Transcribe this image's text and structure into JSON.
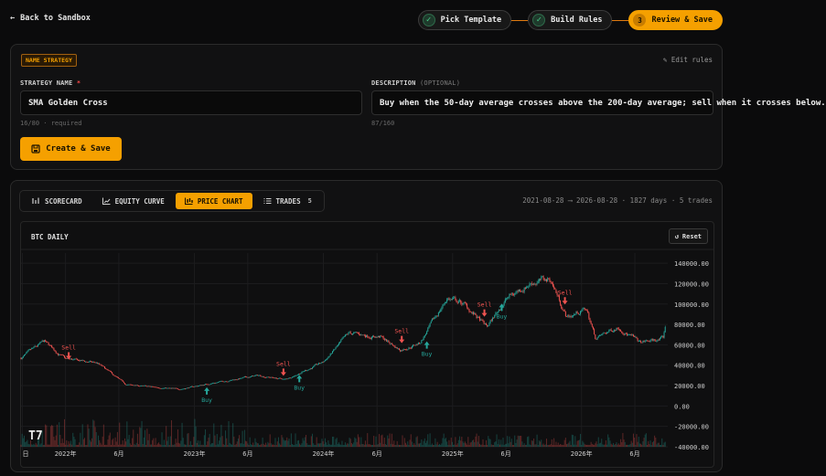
{
  "nav": {
    "back_label": "Back to Sandbox"
  },
  "steps": [
    {
      "label": "Pick Template",
      "state": "done"
    },
    {
      "label": "Build Rules",
      "state": "done"
    },
    {
      "number": "3",
      "label": "Review & Save",
      "state": "active"
    }
  ],
  "name_panel": {
    "tag": "NAME STRATEGY",
    "edit_rules": "Edit rules",
    "name_label": "STRATEGY NAME",
    "required_mark": "*",
    "name_value": "SMA Golden Cross",
    "name_hint": "16/80 · required",
    "desc_label": "DESCRIPTION",
    "desc_optional": "(OPTIONAL)",
    "desc_value": "Buy when the 50-day average crosses above the 200-day average; sell when it crosses below.",
    "desc_hint": "87/160",
    "create_button": "Create & Save"
  },
  "tabs": [
    {
      "label": "SCORECARD",
      "icon": "scorecard-icon"
    },
    {
      "label": "EQUITY CURVE",
      "icon": "equity-curve-icon"
    },
    {
      "label": "PRICE CHART",
      "icon": "price-chart-icon",
      "active": true
    },
    {
      "label": "TRADES",
      "icon": "trades-icon",
      "count": "5"
    }
  ],
  "range_info": "2021-08-28 ⟶ 2026-08-28 · 1827 days · 5 trades",
  "chart": {
    "title": "BTC DAILY",
    "reset_label": "Reset",
    "logo": "TV",
    "colors": {
      "up": "#26a69a",
      "down": "#ef5350",
      "buy": "#26a69a",
      "sell": "#ef5350",
      "grid": "#1c1c1e"
    }
  },
  "chart_data": {
    "type": "candlestick",
    "title": "BTC DAILY",
    "y_ticks": [
      "140000.00",
      "120000.00",
      "100000.00",
      "80000.00",
      "60000.00",
      "40000.00",
      "20000.00",
      "0.00",
      "-20000.00",
      "-40000.00"
    ],
    "ylim": [
      -40000,
      150000
    ],
    "x_ticks": [
      "日",
      "2022年",
      "6月",
      "2023年",
      "6月",
      "2024年",
      "6月",
      "2025年",
      "6月",
      "2026年",
      "6月"
    ],
    "x_tick_dates": [
      "2021-09-01",
      "2022-01-01",
      "2022-06-01",
      "2023-01-01",
      "2023-06-01",
      "2024-01-01",
      "2024-06-01",
      "2025-01-01",
      "2025-06-01",
      "2026-01-01",
      "2026-06-01"
    ],
    "xlim": [
      "2021-08-28",
      "2026-08-28"
    ],
    "price_anchors": [
      {
        "date": "2021-08-28",
        "price": 47000
      },
      {
        "date": "2021-11-01",
        "price": 63000
      },
      {
        "date": "2022-01-01",
        "price": 46000
      },
      {
        "date": "2022-04-01",
        "price": 42000
      },
      {
        "date": "2022-06-20",
        "price": 21000
      },
      {
        "date": "2022-11-20",
        "price": 16500
      },
      {
        "date": "2023-03-01",
        "price": 23000
      },
      {
        "date": "2023-07-01",
        "price": 30000
      },
      {
        "date": "2023-09-15",
        "price": 26000
      },
      {
        "date": "2024-01-01",
        "price": 43000
      },
      {
        "date": "2024-03-14",
        "price": 71000
      },
      {
        "date": "2024-06-10",
        "price": 68000
      },
      {
        "date": "2024-08-05",
        "price": 55000
      },
      {
        "date": "2024-10-01",
        "price": 62000
      },
      {
        "date": "2024-12-17",
        "price": 106000
      },
      {
        "date": "2025-02-01",
        "price": 100000
      },
      {
        "date": "2025-04-08",
        "price": 77000
      },
      {
        "date": "2025-06-01",
        "price": 105000
      },
      {
        "date": "2025-08-14",
        "price": 122000
      },
      {
        "date": "2025-10-06",
        "price": 124000
      },
      {
        "date": "2025-11-20",
        "price": 87000
      },
      {
        "date": "2026-01-15",
        "price": 95000
      },
      {
        "date": "2026-02-10",
        "price": 66000
      },
      {
        "date": "2026-04-15",
        "price": 78000
      },
      {
        "date": "2026-06-15",
        "price": 62000
      },
      {
        "date": "2026-08-20",
        "price": 66000
      },
      {
        "date": "2026-08-28",
        "price": 82000
      }
    ],
    "signals": [
      {
        "type": "Sell",
        "date": "2022-01-10",
        "price": 42000
      },
      {
        "type": "Buy",
        "date": "2023-02-05",
        "price": 22000
      },
      {
        "type": "Sell",
        "date": "2023-09-10",
        "price": 26000
      },
      {
        "type": "Buy",
        "date": "2023-10-25",
        "price": 34000
      },
      {
        "type": "Sell",
        "date": "2024-08-10",
        "price": 58000
      },
      {
        "type": "Buy",
        "date": "2024-10-20",
        "price": 67000
      },
      {
        "type": "Sell",
        "date": "2025-04-01",
        "price": 84000
      },
      {
        "type": "Buy",
        "date": "2025-05-20",
        "price": 104000
      },
      {
        "type": "Sell",
        "date": "2025-11-15",
        "price": 96000
      }
    ],
    "grid": true,
    "volume": true
  }
}
